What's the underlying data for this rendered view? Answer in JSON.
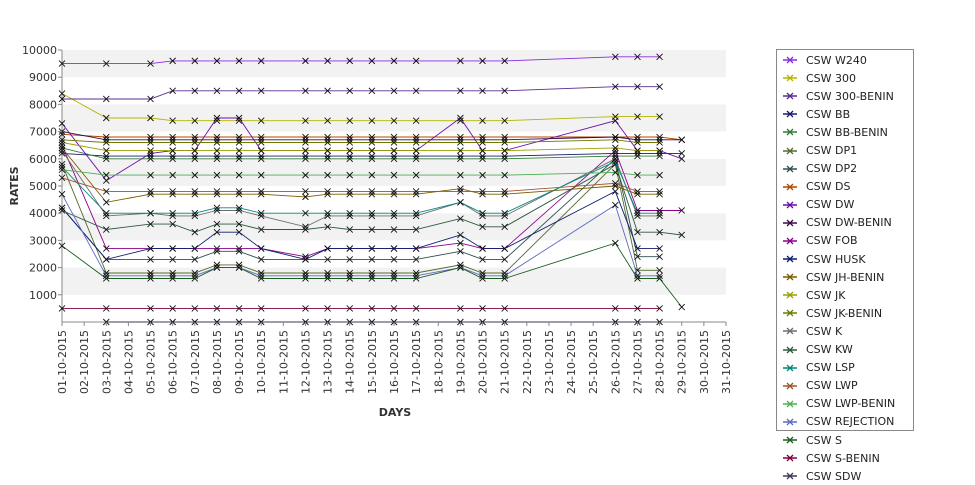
{
  "chart_data": {
    "type": "line",
    "title": "",
    "xlabel": "DAYS",
    "ylabel": "RATES",
    "ylim": [
      0,
      10000
    ],
    "yticks": [
      1000,
      2000,
      3000,
      4000,
      5000,
      6000,
      7000,
      8000,
      9000,
      10000
    ],
    "grid": "alternating horizontal bands",
    "legend_position": "right",
    "x": [
      "01-10-2015",
      "02-10-2015",
      "03-10-2015",
      "04-10-2015",
      "05-10-2015",
      "06-10-2015",
      "07-10-2015",
      "08-10-2015",
      "09-10-2015",
      "10-10-2015",
      "11-10-2015",
      "12-10-2015",
      "13-10-2015",
      "14-10-2015",
      "15-10-2015",
      "16-10-2015",
      "17-10-2015",
      "18-10-2015",
      "19-10-2015",
      "20-10-2015",
      "21-10-2015",
      "22-10-2015",
      "23-10-2015",
      "24-10-2015",
      "25-10-2015",
      "26-10-2015",
      "27-10-2015",
      "28-10-2015",
      "29-10-2015",
      "30-10-2015",
      "31-10-2015"
    ],
    "series": [
      {
        "name": "CSW  W240",
        "color": "#8a2be2",
        "values": [
          9500,
          null,
          9500,
          null,
          9500,
          9600,
          9600,
          9600,
          9600,
          9600,
          null,
          9600,
          9600,
          9600,
          9600,
          9600,
          9600,
          null,
          9600,
          9600,
          9600,
          null,
          null,
          null,
          null,
          9750,
          9750,
          9750,
          null,
          null,
          null
        ]
      },
      {
        "name": "CSW 300",
        "color": "#b5b500",
        "values": [
          8400,
          null,
          7500,
          null,
          7500,
          7400,
          7400,
          7400,
          7400,
          7400,
          null,
          7400,
          7400,
          7400,
          7400,
          7400,
          7400,
          null,
          7400,
          7400,
          7400,
          null,
          null,
          null,
          null,
          7550,
          7550,
          7550,
          null,
          null,
          null
        ]
      },
      {
        "name": "CSW 300-BENIN",
        "color": "#5b2c8f",
        "values": [
          8200,
          null,
          8200,
          null,
          8200,
          8500,
          8500,
          8500,
          8500,
          8500,
          null,
          8500,
          8500,
          8500,
          8500,
          8500,
          8500,
          null,
          8500,
          8500,
          8500,
          null,
          null,
          null,
          null,
          8650,
          8650,
          8650,
          null,
          null,
          null
        ]
      },
      {
        "name": "CSW BB",
        "color": "#1a1a6e",
        "values": [
          6200,
          null,
          6100,
          null,
          6100,
          6100,
          6100,
          6100,
          6100,
          6100,
          null,
          6100,
          6100,
          6100,
          6100,
          6100,
          6100,
          null,
          6100,
          6100,
          6100,
          null,
          null,
          null,
          null,
          6200,
          6200,
          6200,
          6200,
          null,
          null
        ]
      },
      {
        "name": "CSW BB-BENIN",
        "color": "#2e7d32",
        "values": [
          6400,
          null,
          6000,
          null,
          6000,
          6000,
          6000,
          6000,
          6000,
          6000,
          null,
          6000,
          6000,
          6000,
          6000,
          6000,
          6000,
          null,
          6000,
          6000,
          6000,
          null,
          null,
          null,
          null,
          6100,
          6100,
          6100,
          null,
          null,
          null
        ]
      },
      {
        "name": "CSW DP1",
        "color": "#556b2f",
        "values": [
          5800,
          null,
          1800,
          null,
          1800,
          1800,
          1800,
          2100,
          2100,
          1800,
          null,
          1800,
          1800,
          1800,
          1800,
          1800,
          1800,
          null,
          2100,
          1800,
          1800,
          null,
          null,
          null,
          null,
          5800,
          1900,
          1900,
          null,
          null,
          null
        ]
      },
      {
        "name": "CSW DP2",
        "color": "#2f4f4f",
        "values": [
          4200,
          null,
          2300,
          null,
          2300,
          2300,
          2300,
          2600,
          2600,
          2300,
          null,
          2300,
          2300,
          2300,
          2300,
          2300,
          2300,
          null,
          2600,
          2300,
          2300,
          null,
          null,
          null,
          null,
          6000,
          2400,
          2400,
          null,
          null,
          null
        ]
      },
      {
        "name": "CSW DS",
        "color": "#b34700",
        "values": [
          6900,
          null,
          6800,
          null,
          6800,
          6800,
          6800,
          6800,
          6800,
          6800,
          null,
          6800,
          6800,
          6800,
          6800,
          6800,
          6800,
          null,
          6800,
          6800,
          6800,
          null,
          null,
          null,
          null,
          6800,
          6800,
          6800,
          6700,
          null,
          null
        ]
      },
      {
        "name": "CSW DW",
        "color": "#6a0dad",
        "values": [
          7300,
          null,
          5200,
          null,
          6200,
          6300,
          6300,
          7500,
          7500,
          6300,
          null,
          6300,
          6300,
          6300,
          6300,
          6300,
          6300,
          null,
          7500,
          6300,
          6300,
          null,
          null,
          null,
          null,
          7400,
          6300,
          6300,
          6000,
          null,
          null
        ]
      },
      {
        "name": "CSW DW-BENIN",
        "color": "#3b0a45",
        "values": [
          7000,
          null,
          6700,
          null,
          6700,
          6700,
          6700,
          6700,
          6700,
          6700,
          null,
          6700,
          6700,
          6700,
          6700,
          6700,
          6700,
          null,
          6700,
          6700,
          6700,
          null,
          null,
          null,
          null,
          6800,
          6700,
          6700,
          6700,
          null,
          null
        ]
      },
      {
        "name": "CSW FOB",
        "color": "#8b008b",
        "values": [
          6500,
          null,
          2700,
          null,
          2700,
          2700,
          2700,
          2700,
          2700,
          2700,
          null,
          2400,
          2700,
          2700,
          2700,
          2700,
          2700,
          null,
          2900,
          2700,
          2700,
          null,
          null,
          null,
          null,
          6300,
          4100,
          4100,
          4100,
          null,
          null
        ]
      },
      {
        "name": "CSW HUSK",
        "color": "#0b1d6e",
        "values": [
          4200,
          null,
          2300,
          null,
          2700,
          2700,
          2700,
          3300,
          3300,
          2700,
          null,
          2300,
          2700,
          2700,
          2700,
          2700,
          2700,
          null,
          3200,
          2700,
          2700,
          null,
          null,
          null,
          null,
          4800,
          2700,
          2700,
          null,
          null,
          null
        ]
      },
      {
        "name": "CSW JH-BENIN",
        "color": "#7a5c00",
        "values": [
          6400,
          null,
          4400,
          null,
          4700,
          4700,
          4700,
          4700,
          4700,
          4700,
          null,
          4600,
          4700,
          4700,
          4700,
          4700,
          4700,
          null,
          4900,
          4700,
          4700,
          null,
          null,
          null,
          null,
          5000,
          4700,
          4700,
          null,
          null,
          null
        ]
      },
      {
        "name": "CSW JK",
        "color": "#9aa000",
        "values": [
          6600,
          null,
          6300,
          null,
          6300,
          6300,
          6300,
          6300,
          6300,
          6300,
          null,
          6300,
          6300,
          6300,
          6300,
          6300,
          6300,
          null,
          6300,
          6300,
          6300,
          null,
          null,
          null,
          null,
          6400,
          6300,
          6300,
          null,
          null,
          null
        ]
      },
      {
        "name": "CSW JK-BENIN",
        "color": "#6b7a00",
        "values": [
          6700,
          null,
          6600,
          null,
          6600,
          6600,
          6600,
          6600,
          6600,
          6600,
          null,
          6600,
          6600,
          6600,
          6600,
          6600,
          6600,
          null,
          6600,
          6600,
          6600,
          null,
          null,
          null,
          null,
          6700,
          6600,
          6600,
          null,
          null,
          null
        ]
      },
      {
        "name": "CSW K",
        "color": "#6e6e6e",
        "values": [
          6300,
          null,
          3900,
          null,
          4000,
          3900,
          3900,
          4100,
          4100,
          3900,
          null,
          3500,
          3900,
          3900,
          3900,
          3900,
          3900,
          null,
          4400,
          3900,
          3900,
          null,
          null,
          null,
          null,
          6000,
          3900,
          3900,
          null,
          null,
          null
        ]
      },
      {
        "name": "CSW KW",
        "color": "#2d5a3d",
        "values": [
          4100,
          null,
          3400,
          null,
          3600,
          3600,
          3300,
          3600,
          3600,
          3400,
          null,
          3400,
          3500,
          3400,
          3400,
          3400,
          3400,
          null,
          3800,
          3500,
          3500,
          null,
          null,
          null,
          null,
          5800,
          3300,
          3300,
          3200,
          null,
          null
        ]
      },
      {
        "name": "CSW LSP",
        "color": "#00897b",
        "values": [
          5700,
          null,
          4000,
          null,
          4000,
          4000,
          4000,
          4200,
          4200,
          4000,
          null,
          4000,
          4000,
          4000,
          4000,
          4000,
          4000,
          null,
          4400,
          4000,
          4000,
          null,
          null,
          null,
          null,
          5900,
          4000,
          4000,
          null,
          null,
          null
        ]
      },
      {
        "name": "CSW LWP",
        "color": "#a0522d",
        "values": [
          5300,
          null,
          4800,
          null,
          4800,
          4800,
          4800,
          4800,
          4800,
          4800,
          null,
          4800,
          4800,
          4800,
          4800,
          4800,
          4800,
          null,
          4800,
          4800,
          4800,
          null,
          null,
          null,
          null,
          5100,
          4800,
          4800,
          null,
          null,
          null
        ]
      },
      {
        "name": "CSW LWP-BENIN",
        "color": "#4caf50",
        "values": [
          5600,
          null,
          5400,
          null,
          5400,
          5400,
          5400,
          5400,
          5400,
          5400,
          null,
          5400,
          5400,
          5400,
          5400,
          5400,
          5400,
          null,
          5400,
          5400,
          5400,
          null,
          null,
          null,
          null,
          5500,
          5400,
          5400,
          null,
          null,
          null
        ]
      },
      {
        "name": "CSW REJECTION",
        "color": "#5c6bc0",
        "values": [
          4700,
          null,
          1700,
          null,
          1700,
          1700,
          1700,
          2000,
          2000,
          1700,
          null,
          1700,
          1700,
          1700,
          1700,
          1700,
          1700,
          null,
          2000,
          1700,
          1700,
          null,
          null,
          null,
          null,
          4300,
          1700,
          1700,
          null,
          null,
          null
        ]
      },
      {
        "name": "CSW S",
        "color": "#1b5e20",
        "values": [
          2800,
          null,
          1600,
          null,
          1600,
          1600,
          1600,
          2000,
          2000,
          1600,
          null,
          1600,
          1600,
          1600,
          1600,
          1600,
          1600,
          null,
          2000,
          1600,
          1600,
          null,
          null,
          null,
          null,
          2900,
          1600,
          1600,
          550,
          null,
          null
        ]
      },
      {
        "name": "CSW S-BENIN",
        "color": "#800040",
        "values": [
          500,
          null,
          500,
          null,
          500,
          500,
          500,
          500,
          500,
          500,
          null,
          500,
          500,
          500,
          500,
          500,
          500,
          null,
          500,
          500,
          500,
          null,
          null,
          null,
          null,
          500,
          500,
          500,
          null,
          null,
          null
        ]
      },
      {
        "name": "CSW SDW",
        "color": "#3a3a5c",
        "values": [
          null,
          null,
          0,
          null,
          0,
          0,
          0,
          0,
          0,
          0,
          null,
          0,
          0,
          0,
          0,
          0,
          0,
          null,
          0,
          0,
          0,
          null,
          null,
          null,
          null,
          0,
          0,
          0,
          null,
          null,
          null
        ]
      }
    ]
  }
}
